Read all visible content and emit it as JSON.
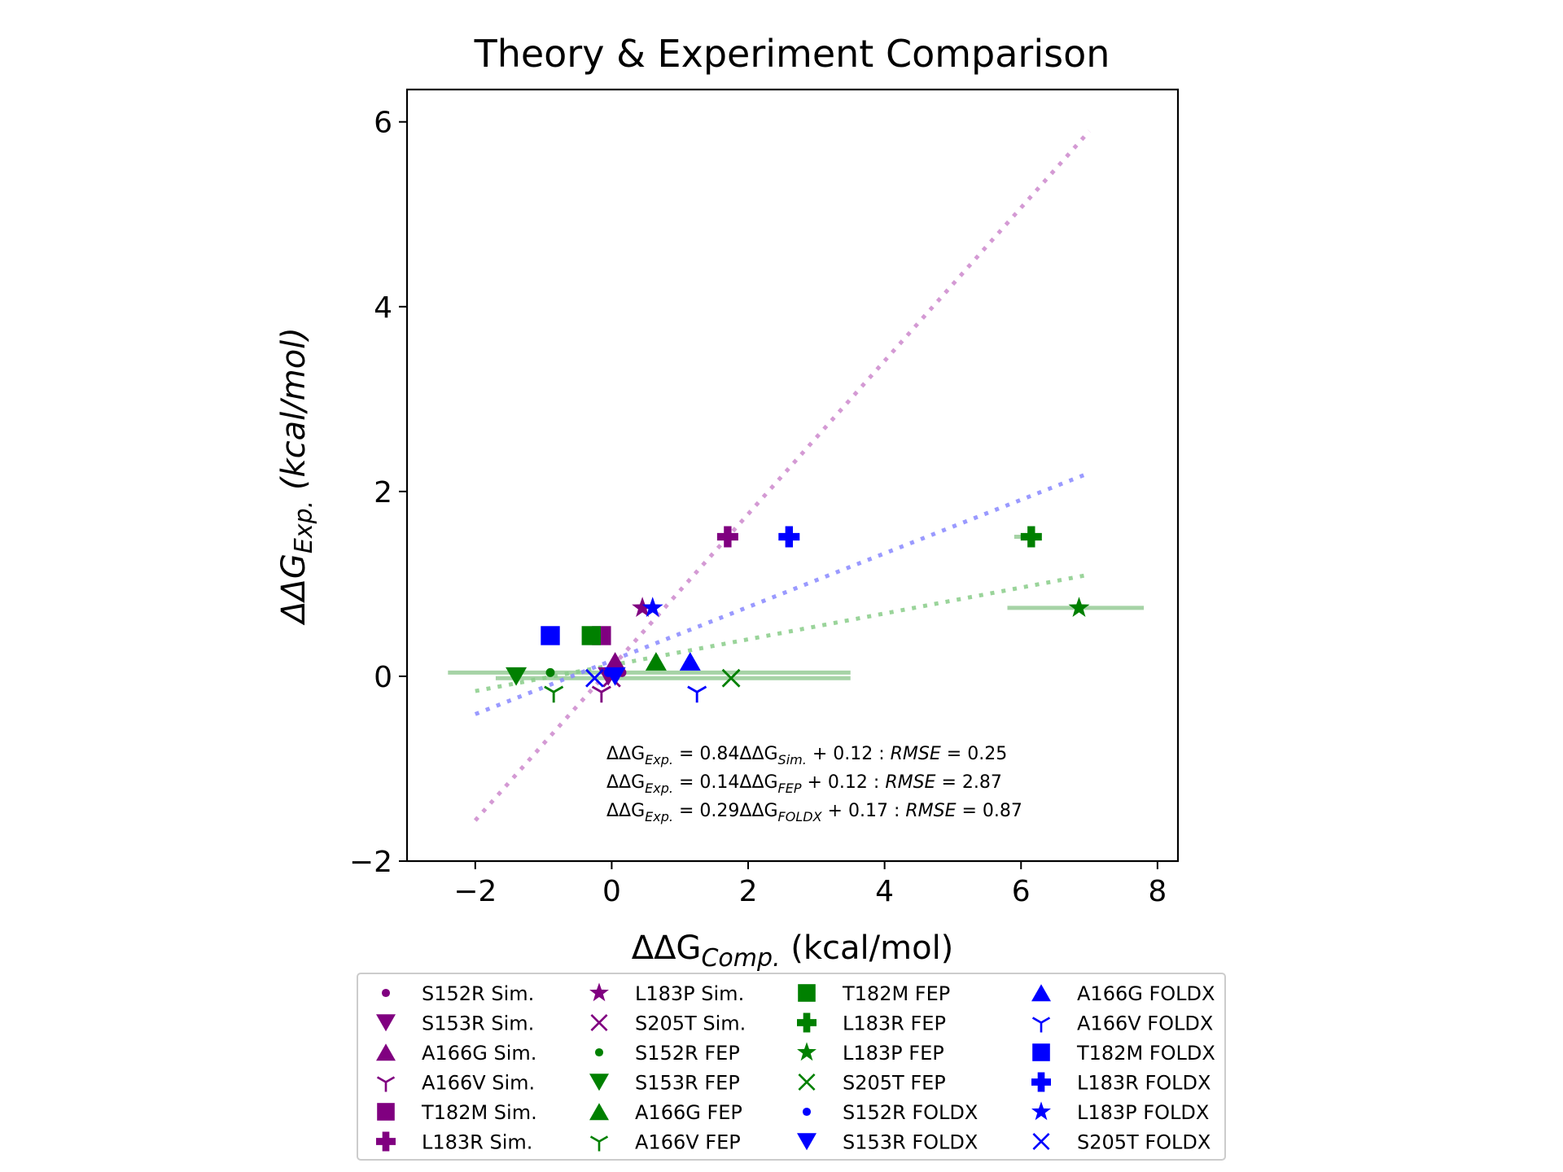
{
  "chart_data": {
    "type": "scatter",
    "title": "Theory & Experiment Comparison",
    "xlabel": {
      "base": "ΔΔG",
      "sub": "Comp.",
      "rest": " (kcal/mol)"
    },
    "ylabel": {
      "base": "ΔΔG",
      "sub": "Exp.",
      "rest": " (kcal/mol)"
    },
    "xlim": [
      -3.0,
      8.3
    ],
    "ylim": [
      -2.0,
      6.35
    ],
    "xticks": [
      -2,
      0,
      2,
      4,
      6,
      8
    ],
    "xtick_labels": [
      "−2",
      "0",
      "2",
      "4",
      "6",
      "8"
    ],
    "yticks": [
      -2,
      0,
      2,
      4,
      6
    ],
    "ytick_labels": [
      "−2",
      "0",
      "2",
      "4",
      "6"
    ],
    "grid": false,
    "legend_position": "bottom",
    "colors": {
      "Sim.": "#800080",
      "FEP": "#008000",
      "FOLDX": "#0000ff"
    },
    "fit_lines": [
      {
        "group": "Sim.",
        "color": "#cc88cc",
        "x": [
          -2.0,
          7.0
        ],
        "y": [
          -1.56,
          5.9
        ]
      },
      {
        "group": "FOLDX",
        "color": "#8888ff",
        "x": [
          -2.0,
          7.0
        ],
        "y": [
          -0.41,
          2.2
        ]
      },
      {
        "group": "FEP",
        "color": "#88cc88",
        "x": [
          -2.0,
          7.0
        ],
        "y": [
          -0.16,
          1.1
        ]
      }
    ],
    "error_bars": [
      {
        "x0": -2.4,
        "x1": 3.5,
        "y": 0.04,
        "color": "#88c488"
      },
      {
        "x0": -1.7,
        "x1": 3.5,
        "y": -0.02,
        "color": "#88c488"
      },
      {
        "x0": 5.8,
        "x1": 7.8,
        "y": 0.74,
        "color": "#88c488"
      },
      {
        "x0": 5.9,
        "x1": 6.3,
        "y": 1.51,
        "color": "#88c488"
      }
    ],
    "series": [
      {
        "name": "S152R Sim.",
        "marker": "point",
        "color": "#800080",
        "x": 0.15,
        "y": 0.04
      },
      {
        "name": "S153R Sim.",
        "marker": "triangle_down",
        "color": "#800080",
        "x": -0.05,
        "y": 0.0
      },
      {
        "name": "A166G Sim.",
        "marker": "triangle_up",
        "color": "#800080",
        "x": 0.05,
        "y": 0.16
      },
      {
        "name": "A166V Sim.",
        "marker": "tri_down",
        "color": "#800080",
        "x": -0.15,
        "y": -0.17
      },
      {
        "name": "T182M Sim.",
        "marker": "square",
        "color": "#800080",
        "x": -0.15,
        "y": 0.44
      },
      {
        "name": "L183R Sim.",
        "marker": "plus_filled",
        "color": "#800080",
        "x": 1.7,
        "y": 1.51
      },
      {
        "name": "L183P Sim.",
        "marker": "star",
        "color": "#800080",
        "x": 0.45,
        "y": 0.74
      },
      {
        "name": "S205T Sim.",
        "marker": "x",
        "color": "#800080",
        "x": 0.0,
        "y": -0.02
      },
      {
        "name": "S152R FEP",
        "marker": "point",
        "color": "#008000",
        "x": -0.9,
        "y": 0.04
      },
      {
        "name": "S153R FEP",
        "marker": "triangle_down",
        "color": "#008000",
        "x": -1.4,
        "y": 0.0
      },
      {
        "name": "A166G FEP",
        "marker": "triangle_up",
        "color": "#008000",
        "x": 0.65,
        "y": 0.16
      },
      {
        "name": "A166V FEP",
        "marker": "tri_down",
        "color": "#008000",
        "x": -0.85,
        "y": -0.17
      },
      {
        "name": "T182M FEP",
        "marker": "square",
        "color": "#008000",
        "x": -0.3,
        "y": 0.44
      },
      {
        "name": "L183R FEP",
        "marker": "plus_filled",
        "color": "#008000",
        "x": 6.15,
        "y": 1.51
      },
      {
        "name": "L183P FEP",
        "marker": "star",
        "color": "#008000",
        "x": 6.85,
        "y": 0.74
      },
      {
        "name": "S205T FEP",
        "marker": "x",
        "color": "#008000",
        "x": 1.75,
        "y": -0.02
      },
      {
        "name": "S152R FOLDX",
        "marker": "point",
        "color": "#0000ff",
        "x": -0.05,
        "y": 0.04
      },
      {
        "name": "S153R FOLDX",
        "marker": "triangle_down",
        "color": "#0000ff",
        "x": 0.05,
        "y": 0.0
      },
      {
        "name": "A166G FOLDX",
        "marker": "triangle_up",
        "color": "#0000ff",
        "x": 1.15,
        "y": 0.16
      },
      {
        "name": "A166V FOLDX",
        "marker": "tri_down",
        "color": "#0000ff",
        "x": 1.25,
        "y": -0.17
      },
      {
        "name": "T182M FOLDX",
        "marker": "square",
        "color": "#0000ff",
        "x": -0.9,
        "y": 0.44
      },
      {
        "name": "L183R FOLDX",
        "marker": "plus_filled",
        "color": "#0000ff",
        "x": 2.6,
        "y": 1.51
      },
      {
        "name": "L183P FOLDX",
        "marker": "star",
        "color": "#0000ff",
        "x": 0.6,
        "y": 0.74
      },
      {
        "name": "S205T FOLDX",
        "marker": "x",
        "color": "#0000ff",
        "x": -0.25,
        "y": -0.02
      }
    ],
    "annotations": [
      {
        "parts": [
          [
            "t",
            "ΔΔG"
          ],
          [
            "s",
            "Exp."
          ],
          [
            "t",
            " = 0.84ΔΔG"
          ],
          [
            "s",
            "Sim."
          ],
          [
            "t",
            " + 0.12 : "
          ],
          [
            "i",
            "RMSE"
          ],
          [
            "t",
            " = 0.25"
          ]
        ]
      },
      {
        "parts": [
          [
            "t",
            "ΔΔG"
          ],
          [
            "s",
            "Exp."
          ],
          [
            "t",
            " = 0.14ΔΔG"
          ],
          [
            "s",
            "FEP"
          ],
          [
            "t",
            " + 0.12 : "
          ],
          [
            "i",
            "RMSE"
          ],
          [
            "t",
            " = 2.87"
          ]
        ]
      },
      {
        "parts": [
          [
            "t",
            "ΔΔG"
          ],
          [
            "s",
            "Exp."
          ],
          [
            "t",
            " = 0.29ΔΔG"
          ],
          [
            "s",
            "FOLDX"
          ],
          [
            "t",
            " + 0.17 : "
          ],
          [
            "i",
            "RMSE"
          ],
          [
            "t",
            " = 0.87"
          ]
        ]
      }
    ]
  }
}
